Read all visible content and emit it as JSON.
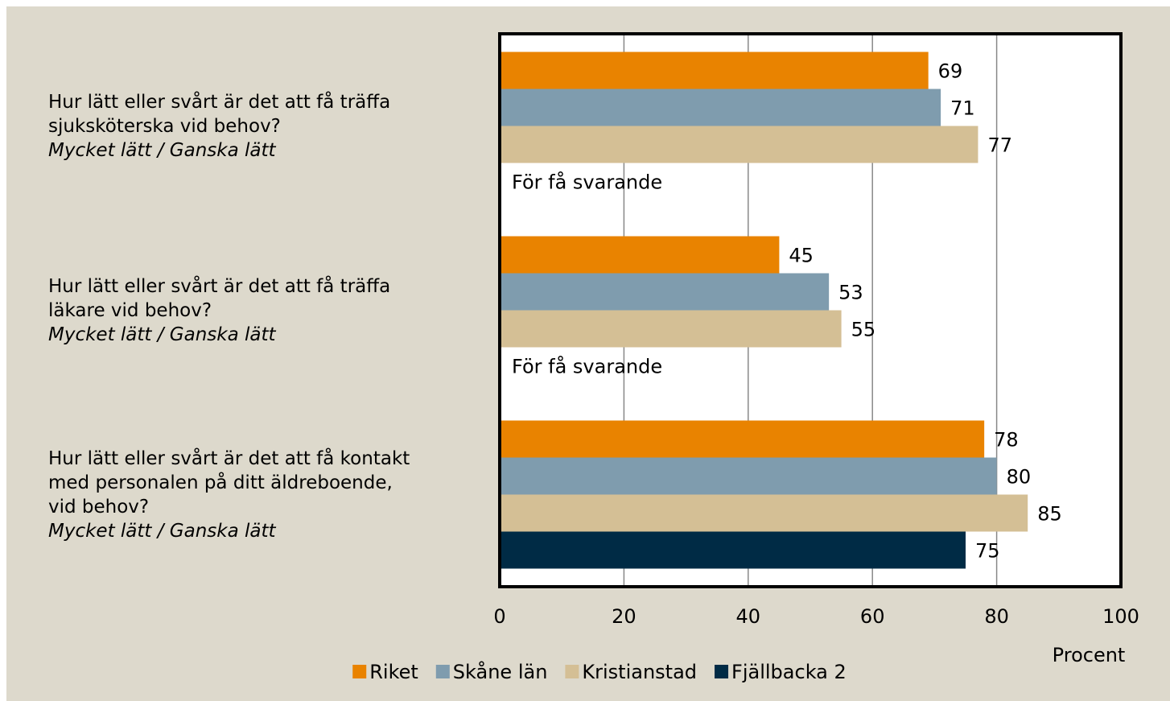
{
  "chart_data": {
    "type": "hbar",
    "categories": [
      "Hur lätt eller svårt är det att få träffa\nsjuksköterska vid behov?",
      "Hur lätt eller svårt är det att få träffa\nläkare vid behov?",
      "Hur lätt eller svårt är det att få kontakt\nmed personalen på ditt äldreboende,\nvid behov?"
    ],
    "category_notes": [
      "Mycket lätt / Ganska lätt",
      "Mycket lätt / Ganska lätt",
      "Mycket lätt / Ganska lätt"
    ],
    "series": [
      {
        "name": "Riket",
        "color": "#E98300",
        "values": [
          69,
          45,
          78
        ]
      },
      {
        "name": "Skåne län",
        "color": "#7F9CAE",
        "values": [
          71,
          53,
          80
        ]
      },
      {
        "name": "Kristianstad",
        "color": "#D4BF95",
        "values": [
          77,
          55,
          85
        ]
      },
      {
        "name": "Fjällbacka 2",
        "color": "#002B45",
        "values": [
          null,
          null,
          75
        ],
        "value_labels": [
          "För få svarande",
          "För få svarande",
          null
        ]
      }
    ],
    "xlim": [
      0,
      100
    ],
    "xticks": [
      0,
      20,
      40,
      60,
      80,
      100
    ],
    "x_label": "Procent",
    "grid": true,
    "legend": "bottom"
  }
}
